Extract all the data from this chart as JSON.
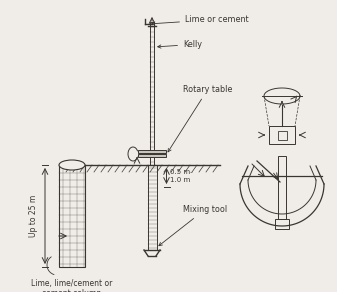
{
  "bg_color": "#f0ede8",
  "line_color": "#3a3530",
  "annotations": {
    "lime_or_cement": "Lime or cement",
    "kelly": "Kelly",
    "rotary_table": "Rotary table",
    "mixing_tool": "Mixing tool",
    "up_to_25m": "Up to 25 m",
    "dim_label": "0.5 m-\n1.0 m",
    "bottom_label": "Lime, lime/cement or\ncement column"
  },
  "figsize": [
    3.37,
    2.92
  ],
  "dpi": 100
}
